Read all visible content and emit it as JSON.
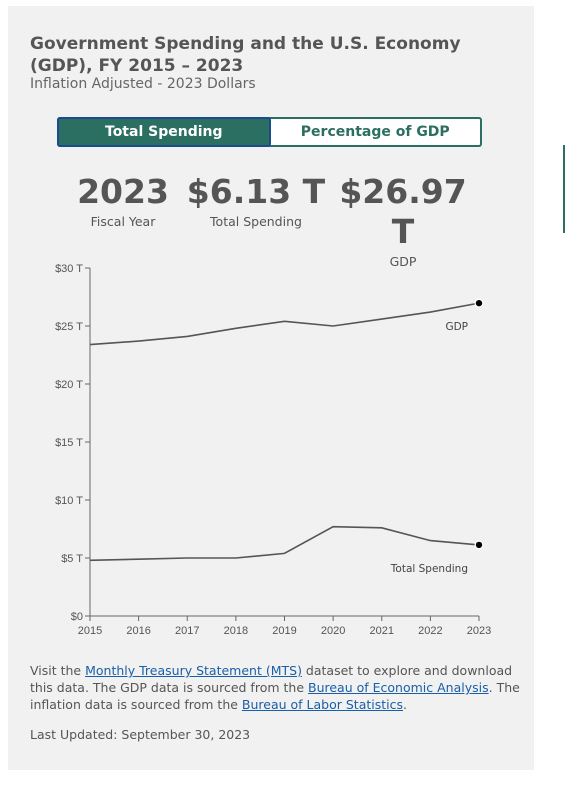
{
  "header": {
    "title": "Government Spending and the U.S. Economy (GDP), FY 2015 – 2023",
    "subtitle": "Inflation Adjusted - 2023 Dollars"
  },
  "toggle": {
    "options": [
      {
        "label": "Total Spending",
        "active": true
      },
      {
        "label": "Percentage of GDP",
        "active": false
      }
    ]
  },
  "stats": [
    {
      "value": "2023",
      "label": "Fiscal Year"
    },
    {
      "value": "$6.13 T",
      "label": "Total Spending"
    },
    {
      "value": "$26.97 T",
      "label": "GDP"
    }
  ],
  "chart_data": {
    "type": "line",
    "x": [
      2015,
      2016,
      2017,
      2018,
      2019,
      2020,
      2021,
      2022,
      2023
    ],
    "x_tick_labels": [
      "2015",
      "2016",
      "2017",
      "2018",
      "2019",
      "2020",
      "2021",
      "2022",
      "2023"
    ],
    "y_tick_values": [
      0,
      5,
      10,
      15,
      20,
      25,
      30
    ],
    "y_tick_labels": [
      "$0",
      "$5 T",
      "$10 T",
      "$15 T",
      "$20 T",
      "$25 T",
      "$30 T"
    ],
    "ylim": [
      0,
      30
    ],
    "grid": false,
    "series": [
      {
        "name": "GDP",
        "values": [
          23.4,
          23.7,
          24.1,
          24.8,
          25.4,
          25.0,
          25.6,
          26.2,
          26.97
        ]
      },
      {
        "name": "Total Spending",
        "values": [
          4.8,
          4.9,
          5.0,
          5.0,
          5.4,
          7.7,
          7.6,
          6.5,
          6.13
        ]
      }
    ],
    "colors": {
      "line": "#555555",
      "marker": "#000000",
      "axis": "#666666"
    }
  },
  "footer": {
    "t1": "Visit the ",
    "link1": "Monthly Treasury Statement (MTS)",
    "t2": " dataset to explore and download this data. The GDP data is sourced from the ",
    "link2": "Bureau of Economic Analysis",
    "t3": ". The inflation data is sourced from the ",
    "link3": "Bureau of Labor Statistics",
    "t4": ".",
    "updated": "Last Updated: September 30, 2023"
  },
  "colors": {
    "accent": "#2b6e62",
    "link": "#1a5ea8",
    "card_bg": "#f1f1f1"
  }
}
